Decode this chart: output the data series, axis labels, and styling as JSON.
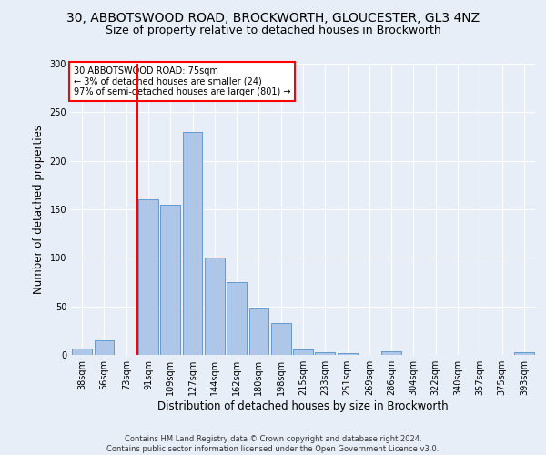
{
  "title1": "30, ABBOTSWOOD ROAD, BROCKWORTH, GLOUCESTER, GL3 4NZ",
  "title2": "Size of property relative to detached houses in Brockworth",
  "xlabel": "Distribution of detached houses by size in Brockworth",
  "ylabel": "Number of detached properties",
  "footer1": "Contains HM Land Registry data © Crown copyright and database right 2024.",
  "footer2": "Contains public sector information licensed under the Open Government Licence v3.0.",
  "annotation_line1": "30 ABBOTSWOOD ROAD: 75sqm",
  "annotation_line2": "← 3% of detached houses are smaller (24)",
  "annotation_line3": "97% of semi-detached houses are larger (801) →",
  "bar_labels": [
    "38sqm",
    "56sqm",
    "73sqm",
    "91sqm",
    "109sqm",
    "127sqm",
    "144sqm",
    "162sqm",
    "180sqm",
    "198sqm",
    "215sqm",
    "233sqm",
    "251sqm",
    "269sqm",
    "286sqm",
    "304sqm",
    "322sqm",
    "340sqm",
    "357sqm",
    "375sqm",
    "393sqm"
  ],
  "bar_values": [
    7,
    15,
    0,
    160,
    155,
    230,
    100,
    75,
    48,
    33,
    6,
    3,
    2,
    0,
    4,
    0,
    0,
    0,
    0,
    0,
    3
  ],
  "bar_color": "#aec6e8",
  "bar_edge_color": "#6699cc",
  "red_line_color": "red",
  "annotation_box_color": "white",
  "annotation_box_edge": "red",
  "background_color": "#e8eef8",
  "plot_bg_color": "#e8eef8",
  "ylim": [
    0,
    300
  ],
  "yticks": [
    0,
    50,
    100,
    150,
    200,
    250,
    300
  ],
  "title1_fontsize": 10,
  "title2_fontsize": 9,
  "xlabel_fontsize": 8.5,
  "ylabel_fontsize": 8.5,
  "annotation_fontsize": 7,
  "footer_fontsize": 6,
  "tick_fontsize": 7
}
